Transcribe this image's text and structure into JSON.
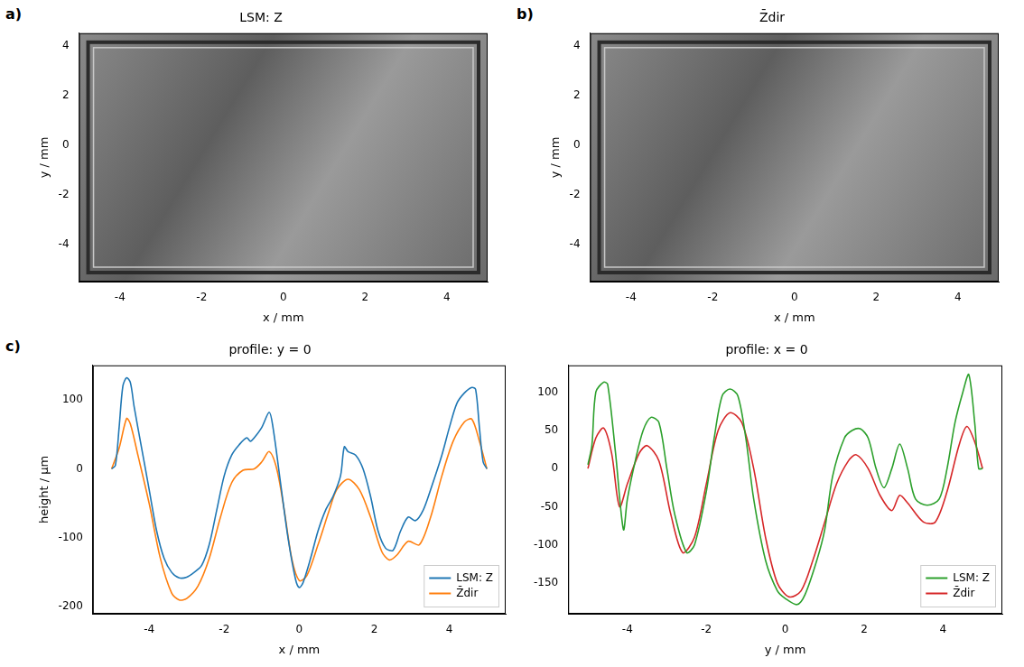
{
  "chart_data": [
    {
      "panel": "a)",
      "type": "surface",
      "title": "LSM: Z",
      "x_label": "x / mm",
      "y_label": "y / mm",
      "xlim": [
        -5,
        5
      ],
      "ylim": [
        -5.5,
        4.5
      ],
      "xticks": [
        -4,
        -2,
        0,
        2,
        4
      ],
      "yticks": [
        -4,
        -2,
        0,
        2,
        4
      ],
      "grid": false
    },
    {
      "panel": "b)",
      "type": "surface",
      "title": "Z̄dir",
      "x_label": "x / mm",
      "y_label": "y / mm",
      "xlim": [
        -5,
        5
      ],
      "ylim": [
        -5.5,
        4.5
      ],
      "xticks": [
        -4,
        -2,
        0,
        2,
        4
      ],
      "yticks": [
        -4,
        -2,
        0,
        2,
        4
      ],
      "grid": false
    },
    {
      "panel": "c)",
      "type": "line",
      "title": "profile: y = 0",
      "x_label": "x / mm",
      "y_label": "height / µm",
      "xlim": [
        -5.5,
        5.5
      ],
      "ylim": [
        -210,
        150
      ],
      "xticks": [
        -4,
        -2,
        0,
        2,
        4
      ],
      "yticks": [
        -200,
        -100,
        0,
        100
      ],
      "grid": false,
      "legend": "lower right",
      "series": [
        {
          "name": "LSM: Z",
          "color": "#1f77b4",
          "x": [
            -5.0,
            -4.9,
            -4.8,
            -4.7,
            -4.6,
            -4.5,
            -4.4,
            -4.2,
            -4.0,
            -3.8,
            -3.6,
            -3.4,
            -3.2,
            -3.0,
            -2.8,
            -2.6,
            -2.4,
            -2.2,
            -2.0,
            -1.8,
            -1.6,
            -1.4,
            -1.3,
            -1.2,
            -1.0,
            -0.8,
            -0.7,
            -0.5,
            -0.3,
            -0.1,
            0.0,
            0.1,
            0.3,
            0.5,
            0.7,
            0.9,
            1.1,
            1.2,
            1.3,
            1.5,
            1.7,
            1.9,
            2.1,
            2.3,
            2.5,
            2.7,
            2.9,
            3.1,
            3.3,
            3.5,
            3.8,
            4.0,
            4.2,
            4.4,
            4.6,
            4.7,
            4.8,
            4.9,
            5.0
          ],
          "values": [
            0,
            5,
            60,
            120,
            132,
            125,
            90,
            30,
            -30,
            -90,
            -130,
            -150,
            -158,
            -157,
            -150,
            -140,
            -110,
            -60,
            -10,
            20,
            35,
            45,
            40,
            45,
            60,
            82,
            60,
            -20,
            -100,
            -160,
            -172,
            -165,
            -130,
            -90,
            -60,
            -40,
            -10,
            32,
            25,
            20,
            0,
            -40,
            -90,
            -115,
            -118,
            -90,
            -70,
            -75,
            -60,
            -30,
            20,
            60,
            95,
            110,
            118,
            115,
            60,
            10,
            0
          ]
        },
        {
          "name": "Z̄dir",
          "color": "#ff7f0e",
          "x": [
            -5.0,
            -4.8,
            -4.6,
            -4.5,
            -4.3,
            -4.0,
            -3.7,
            -3.4,
            -3.2,
            -3.0,
            -2.7,
            -2.4,
            -2.1,
            -1.8,
            -1.5,
            -1.2,
            -1.0,
            -0.8,
            -0.6,
            -0.4,
            -0.2,
            0.0,
            0.2,
            0.5,
            0.8,
            1.0,
            1.3,
            1.6,
            1.9,
            2.2,
            2.4,
            2.6,
            2.9,
            3.2,
            3.5,
            3.8,
            4.1,
            4.4,
            4.6,
            4.8,
            5.0
          ],
          "values": [
            0,
            30,
            73,
            65,
            20,
            -50,
            -130,
            -180,
            -190,
            -188,
            -170,
            -130,
            -70,
            -20,
            -2,
            0,
            10,
            25,
            0,
            -60,
            -130,
            -162,
            -155,
            -110,
            -60,
            -30,
            -15,
            -30,
            -70,
            -120,
            -132,
            -125,
            -105,
            -110,
            -70,
            -10,
            40,
            68,
            72,
            40,
            0
          ]
        }
      ]
    },
    {
      "type": "line",
      "title": "profile: x = 0",
      "x_label": "y / mm",
      "xlim": [
        -5.5,
        5.5
      ],
      "ylim": [
        -190,
        135
      ],
      "xticks": [
        -4,
        -2,
        0,
        2,
        4
      ],
      "yticks": [
        -150,
        -100,
        -50,
        0,
        50,
        100
      ],
      "grid": false,
      "legend": "lower right",
      "series": [
        {
          "name": "LSM: Z",
          "color": "#2ca02c",
          "x": [
            -5.0,
            -4.9,
            -4.8,
            -4.6,
            -4.5,
            -4.3,
            -4.1,
            -4.0,
            -3.8,
            -3.6,
            -3.4,
            -3.2,
            -3.0,
            -2.8,
            -2.5,
            -2.3,
            -2.0,
            -1.8,
            -1.6,
            -1.4,
            -1.2,
            -1.0,
            -0.8,
            -0.5,
            -0.2,
            0.0,
            0.3,
            0.5,
            0.8,
            1.0,
            1.2,
            1.5,
            1.7,
            1.9,
            2.1,
            2.3,
            2.5,
            2.7,
            2.9,
            3.1,
            3.3,
            3.6,
            3.9,
            4.1,
            4.3,
            4.5,
            4.65,
            4.8,
            4.9,
            5.0
          ],
          "values": [
            5,
            30,
            100,
            113,
            110,
            20,
            -80,
            -40,
            10,
            50,
            67,
            60,
            0,
            -60,
            -110,
            -100,
            -30,
            40,
            95,
            104,
            95,
            40,
            -40,
            -120,
            -160,
            -170,
            -178,
            -165,
            -120,
            -80,
            -10,
            40,
            50,
            52,
            40,
            0,
            -25,
            0,
            32,
            0,
            -40,
            -48,
            -40,
            0,
            60,
            100,
            123,
            60,
            0,
            0
          ]
        },
        {
          "name": "Z̄dir",
          "color": "#d62728",
          "x": [
            -5.0,
            -4.8,
            -4.6,
            -4.4,
            -4.2,
            -4.0,
            -3.7,
            -3.5,
            -3.2,
            -2.9,
            -2.6,
            -2.3,
            -2.0,
            -1.7,
            -1.4,
            -1.1,
            -0.8,
            -0.5,
            -0.2,
            0.1,
            0.4,
            0.7,
            1.0,
            1.3,
            1.6,
            1.8,
            2.1,
            2.4,
            2.7,
            2.9,
            3.1,
            3.5,
            3.8,
            4.1,
            4.4,
            4.6,
            4.8,
            5.0
          ],
          "values": [
            0,
            40,
            53,
            20,
            -50,
            -20,
            20,
            30,
            10,
            -60,
            -110,
            -90,
            -20,
            50,
            73,
            60,
            0,
            -90,
            -150,
            -168,
            -160,
            -120,
            -70,
            -20,
            10,
            18,
            0,
            -35,
            -55,
            -35,
            -45,
            -70,
            -70,
            -30,
            30,
            55,
            35,
            0
          ]
        }
      ]
    }
  ]
}
